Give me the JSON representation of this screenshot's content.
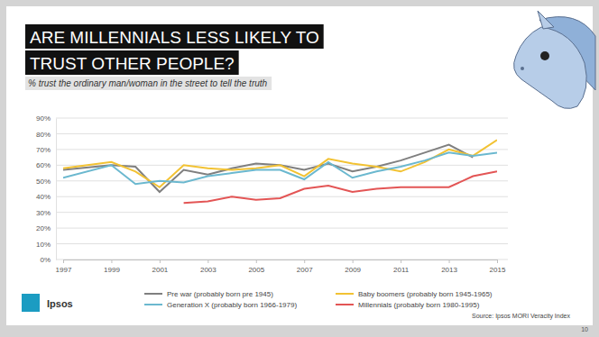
{
  "chart_data": {
    "type": "line",
    "title": "ARE MILLENNIALS LESS LIKELY TO TRUST OTHER PEOPLE?",
    "subtitle": "% trust the ordinary man/woman in the street to tell the truth",
    "source": "Source: Ipsos MORI Veracity Index",
    "annotations": [
      "Ipsos",
      "10"
    ],
    "x": [
      1997,
      1999,
      2000,
      2001,
      2002,
      2003,
      2004,
      2005,
      2006,
      2007,
      2008,
      2009,
      2010,
      2011,
      2012,
      2013,
      2014,
      2015
    ],
    "xlim": [
      1997,
      2015
    ],
    "xticks": [
      1997,
      1999,
      2001,
      2003,
      2005,
      2007,
      2009,
      2011,
      2013,
      2015
    ],
    "ylim": [
      0,
      90
    ],
    "yticks": [
      {
        "value": 0,
        "label": "0%"
      },
      {
        "value": 10,
        "label": "10%"
      },
      {
        "value": 20,
        "label": "20%"
      },
      {
        "value": 30,
        "label": "30%"
      },
      {
        "value": 40,
        "label": "40%"
      },
      {
        "value": 50,
        "label": "50%"
      },
      {
        "value": 60,
        "label": "60%"
      },
      {
        "value": 70,
        "label": "70%"
      },
      {
        "value": 80,
        "label": "80%"
      },
      {
        "value": 90,
        "label": "90%"
      }
    ],
    "grid": true,
    "legend": "bottom",
    "series": [
      {
        "name": "Pre war (probably born pre 1945)",
        "color": "#7f7f7f",
        "values": [
          57,
          60,
          59,
          43,
          57,
          54,
          58,
          61,
          60,
          57,
          61,
          56,
          59,
          63,
          68,
          73,
          65,
          null
        ]
      },
      {
        "name": "Baby boomers (probably born 1945-1965)",
        "color": "#f2c233",
        "values": [
          58,
          62,
          56,
          46,
          60,
          58,
          57,
          58,
          60,
          53,
          64,
          61,
          59,
          56,
          62,
          70,
          66,
          76
        ]
      },
      {
        "name": "Generation X (probably born 1966-1979)",
        "color": "#6bb8cf",
        "values": [
          52,
          60,
          48,
          50,
          49,
          53,
          55,
          57,
          57,
          51,
          62,
          52,
          56,
          59,
          63,
          68,
          66,
          68
        ]
      },
      {
        "name": "Millennials (probably born 1980-1995)",
        "color": "#e35555",
        "values": [
          null,
          null,
          null,
          null,
          36,
          37,
          40,
          38,
          39,
          45,
          47,
          43,
          45,
          46,
          46,
          46,
          53,
          56
        ]
      }
    ]
  }
}
